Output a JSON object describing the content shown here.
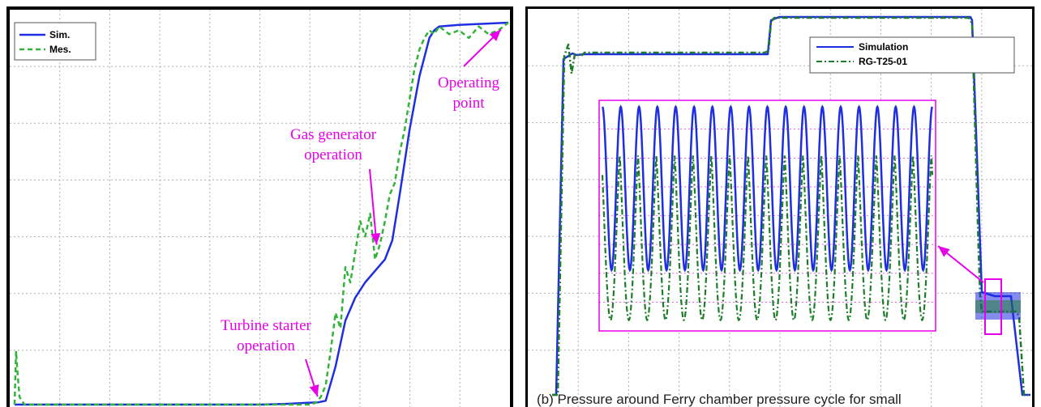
{
  "chart_data": [
    {
      "type": "line",
      "legend": {
        "placement": "top-left"
      },
      "grid": true,
      "xlim": [
        0,
        100
      ],
      "ylim": [
        0,
        100
      ],
      "series": [
        {
          "name": "Sim.",
          "color": "#1f2ee0",
          "style": "solid",
          "x": [
            0,
            10,
            20,
            30,
            40,
            50,
            55,
            60,
            61.5,
            63,
            65,
            67,
            69,
            71,
            73,
            75,
            76.5,
            78,
            80,
            82,
            84,
            85,
            86,
            90,
            95,
            100
          ],
          "y": [
            0,
            0,
            0,
            0,
            0,
            0,
            0.2,
            0.5,
            0.6,
            1,
            10,
            22,
            28,
            32,
            35,
            38,
            43,
            55,
            72,
            86,
            96,
            98,
            99,
            99.4,
            99.7,
            100
          ]
        },
        {
          "name": "Mes.",
          "color": "#33b33a",
          "style": "dashed",
          "x": [
            0,
            0.3,
            0.6,
            1,
            2,
            10,
            20,
            30,
            40,
            50,
            60,
            61,
            62,
            63,
            64,
            65,
            66,
            67,
            68,
            69,
            70,
            71,
            72,
            73,
            74,
            75,
            76,
            77,
            78,
            79,
            80,
            81,
            82,
            83,
            84,
            85,
            86,
            88,
            90,
            92,
            94,
            96,
            98,
            100
          ],
          "y": [
            0,
            14,
            8,
            2,
            0,
            0,
            0,
            0,
            0,
            0,
            0,
            0.5,
            2,
            5,
            14,
            24,
            20,
            36,
            32,
            40,
            48,
            44,
            50,
            38,
            42,
            48,
            55,
            58,
            66,
            72,
            80,
            88,
            93,
            96,
            98,
            97,
            99,
            97,
            98,
            96,
            99,
            97,
            98,
            100
          ]
        }
      ],
      "annotations": [
        {
          "lines": [
            "Operating",
            "point"
          ],
          "x": 98.5,
          "y": 99
        },
        {
          "lines": [
            "Gas generator",
            "operation"
          ],
          "x": 73,
          "y": 41
        },
        {
          "lines": [
            "Turbine starter",
            "operation"
          ],
          "x": 64,
          "y": 0.8
        }
      ]
    },
    {
      "type": "line",
      "legend": {
        "placement": "top-right"
      },
      "grid": true,
      "xlim": [
        0,
        100
      ],
      "ylim": [
        0,
        100
      ],
      "series": [
        {
          "name": "Simulation",
          "color": "#1f2ee0",
          "style": "solid"
        },
        {
          "name": "RG-T25-01",
          "color": "#1e7d2a",
          "style": "dash-dot"
        }
      ],
      "inset": {
        "color": "#e800e8",
        "cycles": 18,
        "main_top": 100,
        "main_bottom": 25,
        "meas_top": 78,
        "meas_bottom": 2
      },
      "annotations": []
    }
  ],
  "caption": "(b) Pressure around Ferry chamber pressure cycle for small"
}
